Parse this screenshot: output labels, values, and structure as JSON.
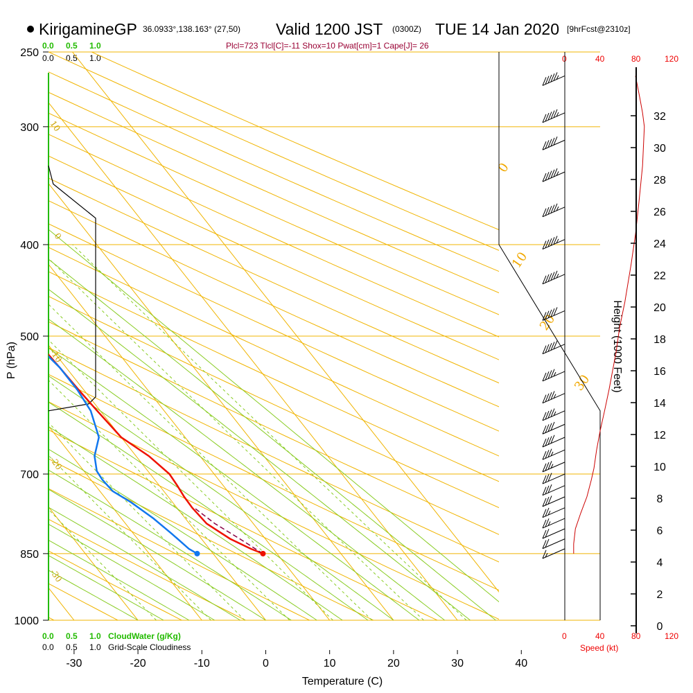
{
  "header": {
    "station": "KirigamineGP",
    "coords": "36.0933°,138.163° (27,50)",
    "valid": "Valid 1200 JST",
    "utc": "(0300Z)",
    "date": "TUE 14 Jan 2020",
    "forecast": "[9hrFcst@2310z]",
    "indices": "Plcl=723 Tlcl[C]=-11 Shox=10 Pwat[cm]=1 Cape[J]= 26"
  },
  "axes": {
    "pressure_label": "P (hPa)",
    "temperature_label": "Temperature (C)",
    "height_label": "Height (1000 Feet)",
    "speed_label": "Speed (kt)",
    "cloudwater_label": "CloudWater (g/Kg)",
    "cloudiness_label": "Grid-Scale Cloudiness",
    "scale_green": [
      "0.0",
      "0.5",
      "1.0"
    ],
    "scale_black": [
      "0.0",
      "0.5",
      "1.0"
    ],
    "speed_ticks": [
      "0",
      "40",
      "80",
      "120"
    ],
    "pressure_ticks": [
      "250",
      "300",
      "400",
      "500",
      "700",
      "850",
      "1000"
    ],
    "temp_ticks": [
      "-30",
      "-20",
      "-10",
      "0",
      "10",
      "20",
      "30",
      "40"
    ],
    "height_ticks": [
      "0",
      "2",
      "4",
      "6",
      "8",
      "10",
      "12",
      "14",
      "16",
      "18",
      "20",
      "22",
      "24",
      "26",
      "28",
      "30",
      "32"
    ]
  },
  "colors": {
    "temperature": "#ee1100",
    "dewpoint": "#1177ee",
    "parcel": "#880044",
    "isotherm": "#f0b400",
    "dry_adiabat": "#f0b400",
    "moist_adiabat": "#88cc22",
    "mixing_ratio": "#88cc22",
    "speed_profile": "#cc0000",
    "cloudiness": "#000000",
    "cloudwater": "#22bb00"
  },
  "chart_data": {
    "type": "line",
    "title": "KirigamineGP Valid 1200 JST (0300Z) TUE 14 Jan 2020 [9hrFcst@2310z]",
    "xlabel": "Temperature (C)",
    "ylabel": "P (hPa)",
    "xlim": [
      -34,
      47
    ],
    "ylim": [
      1000,
      250
    ],
    "yscale": "log",
    "skew": "skew-T log-P",
    "series": [
      {
        "key": "temperature",
        "x": [
          7.8,
          6.5,
          4.5,
          2.7,
          2.4,
          2.5,
          2.8,
          3.0,
          2.0,
          0.0,
          -0.5,
          -0.8,
          -1.0,
          -1.3,
          -2.5,
          -5.0,
          -8.0,
          -11.0,
          -14.5,
          -18.0,
          -22.5,
          -27.5
        ],
        "y": [
          850,
          840,
          820,
          790,
          760,
          740,
          720,
          700,
          670,
          640,
          600,
          570,
          540,
          510,
          480,
          440,
          400,
          370,
          340,
          315,
          290,
          265
        ]
      },
      {
        "key": "dewpoint",
        "x": [
          -2.5,
          -3.2,
          -4.0,
          -5.0,
          -6.5,
          -8.0,
          -8.2,
          -8.0,
          -6.5,
          -3.5,
          -1.5,
          -1.0,
          -1.0,
          -1.8,
          -3.5,
          -7.5,
          -13.0,
          -17.0,
          -20.0,
          -23.0,
          -28.0,
          -35.5
        ],
        "y": [
          850,
          840,
          810,
          780,
          750,
          730,
          710,
          695,
          670,
          640,
          600,
          570,
          540,
          510,
          480,
          440,
          400,
          370,
          340,
          315,
          290,
          265
        ]
      },
      {
        "key": "parcel",
        "x": [
          7.8,
          6.0,
          4.0,
          2.7
        ],
        "y": [
          850,
          820,
          790,
          760
        ]
      }
    ],
    "surface_points": [
      {
        "key": "temperature",
        "x": 7.8,
        "y": 850
      },
      {
        "key": "dewpoint",
        "x": -2.5,
        "y": 850
      }
    ],
    "isobars": [
      250,
      300,
      400,
      500,
      700,
      850,
      1000
    ],
    "moist_adiabats": [
      "0",
      "10",
      "20",
      "30"
    ],
    "dry_adiabats": [
      "0",
      "-10",
      "-20",
      "-30",
      "10"
    ],
    "mixing_ratios": [
      "1",
      "2",
      "3",
      "5",
      "8",
      "12",
      "20"
    ],
    "cloudiness_profile": {
      "x": [
        0.0,
        0.1,
        1.0,
        1.0,
        0.85,
        0.0
      ],
      "y": [
        330,
        345,
        375,
        580,
        590,
        600
      ]
    },
    "wind_speed_profile": {
      "x": [
        10,
        10,
        12,
        18,
        25,
        30,
        33,
        36,
        40,
        45,
        50,
        58,
        62,
        68,
        75,
        80,
        84,
        88,
        90,
        88,
        85,
        80
      ],
      "y": [
        850,
        830,
        800,
        770,
        740,
        710,
        690,
        660,
        630,
        600,
        570,
        520,
        490,
        460,
        420,
        390,
        360,
        330,
        300,
        290,
        280,
        265
      ]
    },
    "wind_barbs": {
      "pressure": [
        265,
        290,
        310,
        335,
        365,
        395,
        430,
        470,
        510,
        545,
        575,
        600,
        620,
        640,
        660,
        680,
        700,
        720,
        740,
        760,
        780,
        800,
        820,
        840
      ],
      "speed_kt": [
        55,
        55,
        50,
        55,
        55,
        55,
        55,
        50,
        50,
        45,
        45,
        45,
        40,
        40,
        35,
        35,
        30,
        30,
        30,
        25,
        25,
        20,
        20,
        15
      ]
    }
  }
}
